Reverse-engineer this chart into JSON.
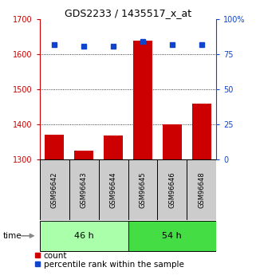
{
  "title": "GDS2233 / 1435517_x_at",
  "samples": [
    "GSM96642",
    "GSM96643",
    "GSM96644",
    "GSM96645",
    "GSM96646",
    "GSM96648"
  ],
  "counts": [
    1370,
    1325,
    1368,
    1640,
    1400,
    1460
  ],
  "percentiles": [
    82,
    81,
    81,
    84,
    82,
    82
  ],
  "groups": [
    {
      "label": "46 h",
      "samples": [
        0,
        1,
        2
      ],
      "color_light": "#AAFFAA",
      "color_dark": "#44DD44"
    },
    {
      "label": "54 h",
      "samples": [
        3,
        4,
        5
      ],
      "color_light": "#44DD44",
      "color_dark": "#00BB00"
    }
  ],
  "ylim_left": [
    1300,
    1700
  ],
  "ylim_right": [
    0,
    100
  ],
  "yticks_left": [
    1300,
    1400,
    1500,
    1600,
    1700
  ],
  "yticks_right": [
    0,
    25,
    50,
    75,
    100
  ],
  "bar_color": "#CC0000",
  "dot_color": "#1144CC",
  "title_fontsize": 9,
  "tick_fontsize": 7,
  "legend_fontsize": 7.5
}
